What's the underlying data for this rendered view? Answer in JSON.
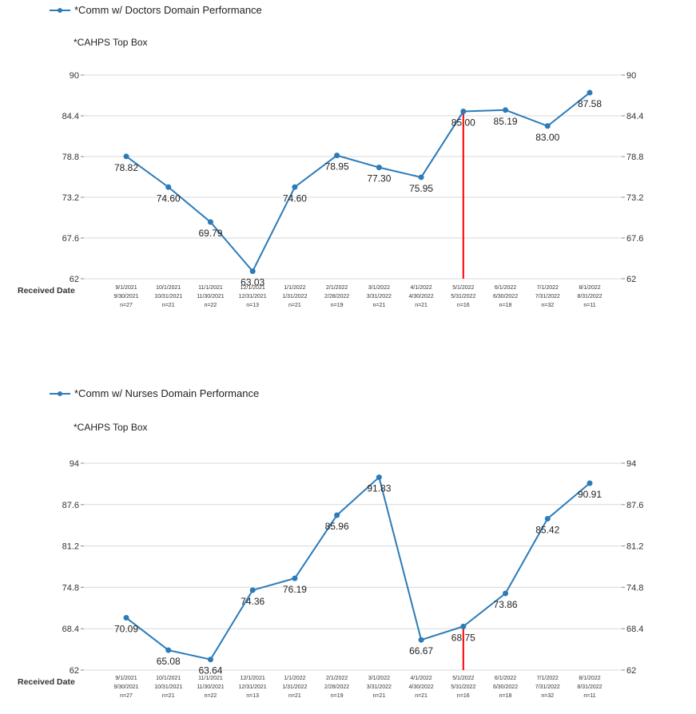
{
  "received_label": "Received Date",
  "chart_data": [
    {
      "type": "line",
      "legend": "*Comm w/ Doctors Domain Performance",
      "subtitle": "*CAHPS Top Box",
      "ylim": [
        62,
        90
      ],
      "yticks": [
        "62",
        "67.6",
        "73.2",
        "78.8",
        "84.4",
        "90"
      ],
      "categories": [
        [
          "9/1/2021",
          "9/30/2021",
          "n=27"
        ],
        [
          "10/1/2021",
          "10/31/2021",
          "n=21"
        ],
        [
          "11/1/2021",
          "11/30/2021",
          "n=22"
        ],
        [
          "12/1/2021",
          "12/31/2021",
          "n=13"
        ],
        [
          "1/1/2022",
          "1/31/2022",
          "n=21"
        ],
        [
          "2/1/2022",
          "2/28/2022",
          "n=19"
        ],
        [
          "3/1/2022",
          "3/31/2022",
          "n=21"
        ],
        [
          "4/1/2022",
          "4/30/2022",
          "n=21"
        ],
        [
          "5/1/2022",
          "5/31/2022",
          "n=16"
        ],
        [
          "6/1/2022",
          "6/30/2022",
          "n=18"
        ],
        [
          "7/1/2022",
          "7/31/2022",
          "n=32"
        ],
        [
          "8/1/2022",
          "8/31/2022",
          "n=11"
        ]
      ],
      "values": [
        78.82,
        74.6,
        69.79,
        63.03,
        74.6,
        78.95,
        77.3,
        75.95,
        85.0,
        85.19,
        83.0,
        87.58
      ],
      "labels": [
        "78.82",
        "74.60",
        "69.79",
        "63.03",
        "74.60",
        "78.95",
        "77.30",
        "75.95",
        "85.00",
        "85.19",
        "83.00",
        "87.58"
      ],
      "marker_index": 8,
      "grid": true,
      "line_color": "#2b7bb9",
      "marker_color": "#ff0000"
    },
    {
      "type": "line",
      "legend": "*Comm w/ Nurses Domain Performance",
      "subtitle": "*CAHPS Top Box",
      "ylim": [
        62,
        94
      ],
      "yticks": [
        "62",
        "68.4",
        "74.8",
        "81.2",
        "87.6",
        "94"
      ],
      "categories": [
        [
          "9/1/2021",
          "9/30/2021",
          "n=27"
        ],
        [
          "10/1/2021",
          "10/31/2021",
          "n=21"
        ],
        [
          "11/1/2021",
          "11/30/2021",
          "n=22"
        ],
        [
          "12/1/2021",
          "12/31/2021",
          "n=13"
        ],
        [
          "1/1/2022",
          "1/31/2022",
          "n=21"
        ],
        [
          "2/1/2022",
          "2/28/2022",
          "n=19"
        ],
        [
          "3/1/2022",
          "3/31/2022",
          "n=21"
        ],
        [
          "4/1/2022",
          "4/30/2022",
          "n=21"
        ],
        [
          "5/1/2022",
          "5/31/2022",
          "n=16"
        ],
        [
          "6/1/2022",
          "6/30/2022",
          "n=18"
        ],
        [
          "7/1/2022",
          "7/31/2022",
          "n=32"
        ],
        [
          "8/1/2022",
          "8/31/2022",
          "n=11"
        ]
      ],
      "values": [
        70.09,
        65.08,
        63.64,
        74.36,
        76.19,
        85.96,
        91.83,
        66.67,
        68.75,
        73.86,
        85.42,
        90.91
      ],
      "labels": [
        "70.09",
        "65.08",
        "63.64",
        "74.36",
        "76.19",
        "85.96",
        "91.83",
        "66.67",
        "68.75",
        "73.86",
        "85.42",
        "90.91"
      ],
      "marker_index": 8,
      "grid": true,
      "line_color": "#2b7bb9",
      "marker_color": "#ff0000"
    }
  ]
}
